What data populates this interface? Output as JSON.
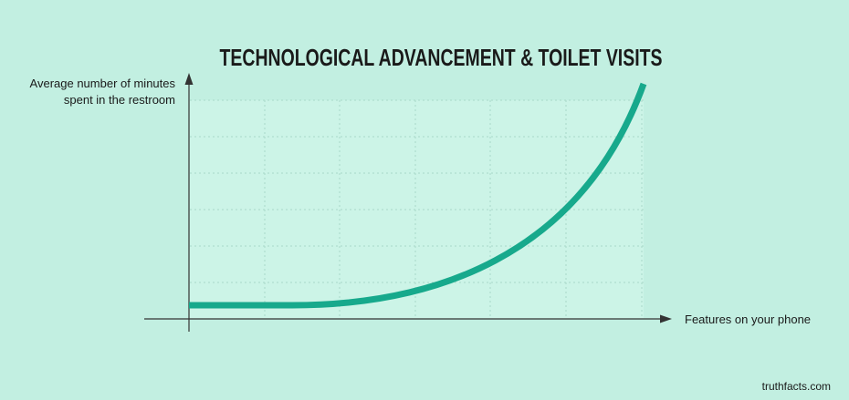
{
  "title": "TECHNOLOGICAL ADVANCEMENT & TOILET VISITS",
  "y_axis_label": [
    "Average number of minutes",
    "spent in the restroom"
  ],
  "x_axis_label": "Features on your phone",
  "credit": "truthfacts.com"
}
